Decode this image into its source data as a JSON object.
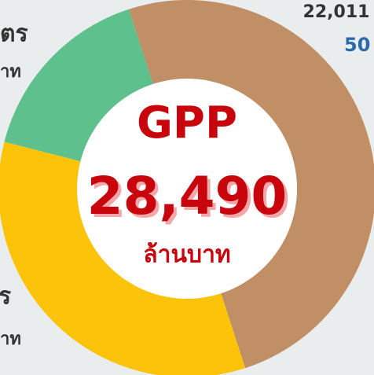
{
  "chart_data": {
    "type": "donut",
    "center_title": "GPP",
    "center_value": "28,490",
    "center_unit": "ล้านบาท",
    "series": [
      {
        "color": "#c08f66",
        "value": 50
      },
      {
        "color": "#fcc30b",
        "value": 34
      },
      {
        "color": "#5ec08c",
        "value": 16
      }
    ],
    "annotations": [
      "22,011",
      "50",
      "ตร",
      "าท",
      "ร",
      "าท"
    ]
  }
}
